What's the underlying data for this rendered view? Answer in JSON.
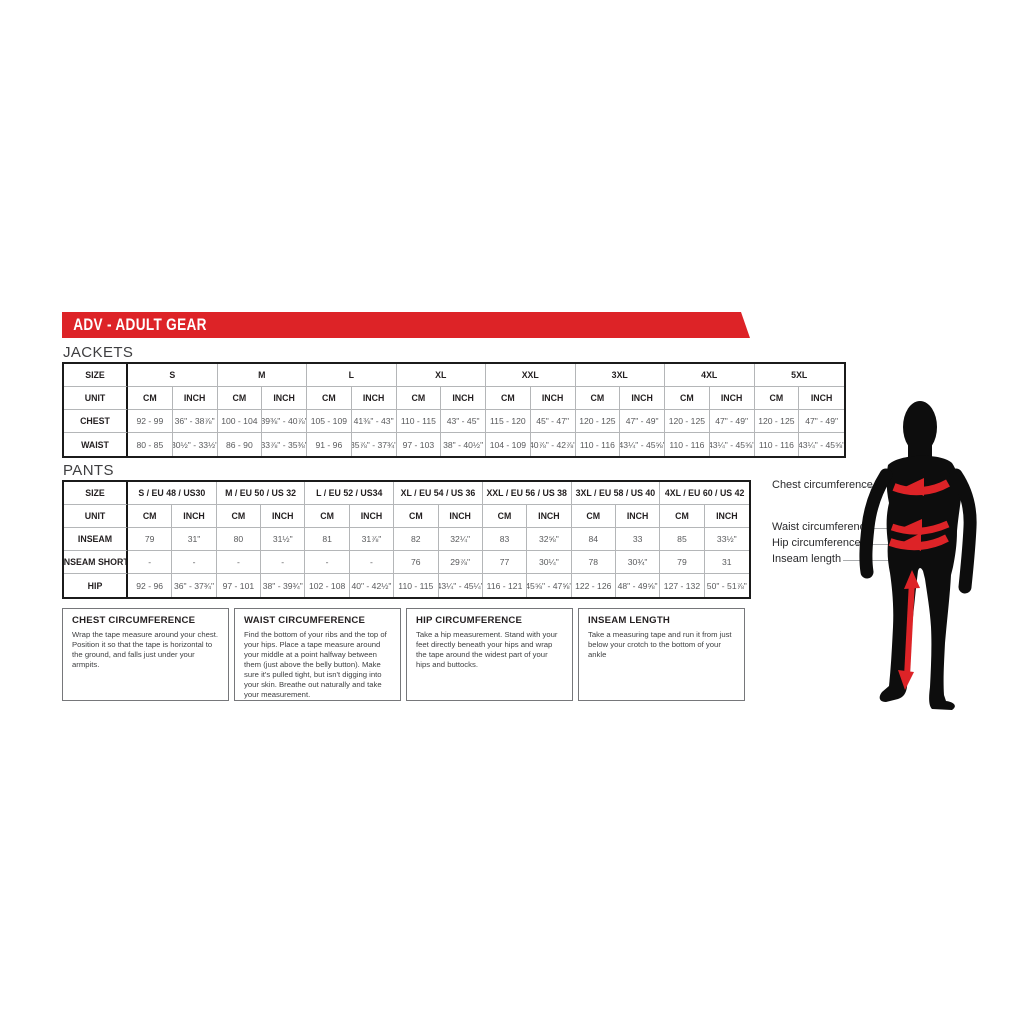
{
  "banner": {
    "title": "ADV - ADULT GEAR"
  },
  "colors": {
    "accent": "#dd2327",
    "body_silhouette": "#0d0d0d",
    "label_text": "#231f20",
    "value_text": "#58595b"
  },
  "jackets": {
    "section_title": "JACKETS",
    "size_label": "SIZE",
    "unit_label": "UNIT",
    "cm_label": "CM",
    "inch_label": "INCH",
    "columns": [
      "S",
      "M",
      "L",
      "XL",
      "XXL",
      "3XL",
      "4XL",
      "5XL"
    ],
    "rows": [
      {
        "label": "CHEST",
        "cm": [
          "92 - 99",
          "100 - 104",
          "105 - 109",
          "110 - 115",
          "115 - 120",
          "120 - 125",
          "120 - 125",
          "120 - 125"
        ],
        "inch": [
          "36\" - 38⅞\"",
          "39⅜\" - 40⅞\"",
          "41⅜\" - 43\"",
          "43\" - 45\"",
          "45\" - 47\"",
          "47\" - 49\"",
          "47\" - 49\"",
          "47\" - 49\""
        ]
      },
      {
        "label": "WAIST",
        "cm": [
          "80 - 85",
          "86 - 90",
          "91 - 96",
          "97 - 103",
          "104 - 109",
          "110 - 116",
          "110 - 116",
          "110 - 116"
        ],
        "inch": [
          "30½\" - 33½\"",
          "33⅞\" - 35⅜\"",
          "35⅞\" - 37¾\"",
          "38\" - 40½\"",
          "40⅞\" - 42⅞\"",
          "43¼\" - 45⅝\"",
          "43¼\" - 45⅝\"",
          "43¼\" - 45⅝\""
        ]
      }
    ]
  },
  "pants": {
    "section_title": "PANTS",
    "size_label": "SIZE",
    "unit_label": "UNIT",
    "cm_label": "CM",
    "inch_label": "INCH",
    "columns": [
      "S / EU 48 / US30",
      "M / EU 50 / US 32",
      "L / EU 52 / US34",
      "XL / EU 54 / US 36",
      "XXL / EU 56 / US 38",
      "3XL / EU 58 / US 40",
      "4XL / EU 60 / US 42"
    ],
    "rows": [
      {
        "label": "INSEAM",
        "cm": [
          "79",
          "80",
          "81",
          "82",
          "83",
          "84",
          "85"
        ],
        "inch": [
          "31\"",
          "31½\"",
          "31⅞\"",
          "32¼\"",
          "32⅝\"",
          "33",
          "33½\""
        ]
      },
      {
        "label": "INSEAM SHORT",
        "cm": [
          "-",
          "-",
          "-",
          "76",
          "77",
          "78",
          "79"
        ],
        "inch": [
          "-",
          "-",
          "-",
          "29⅞\"",
          "30¼\"",
          "30¾\"",
          "31"
        ]
      },
      {
        "label": "HIP",
        "cm": [
          "92 - 96",
          "97 - 101",
          "102 - 108",
          "110 - 115",
          "116 - 121",
          "122 - 126",
          "127 - 132"
        ],
        "inch": [
          "36\" - 37¾\"",
          "38\" - 39¾\"",
          "40\" - 42½\"",
          "43¼\" - 45¼\"",
          "45⅝\" - 47⅝\"",
          "48\" - 49⅝\"",
          "50\" - 51⅞\""
        ]
      }
    ]
  },
  "guides": [
    {
      "title": "CHEST CIRCUMFERENCE",
      "body": "Wrap the tape measure around your chest. Position it so that the tape is horizontal to the ground, and falls just under your armpits."
    },
    {
      "title": "WAIST CIRCUMFERENCE",
      "body": "Find the bottom of your ribs and the top of your hips. Place a tape measure around your middle at a point halfway between them (just above the belly button). Make sure it's pulled tight, but isn't digging into your skin. Breathe out naturally and take your measurement."
    },
    {
      "title": "HIP CIRCUMFERENCE",
      "body": "Take a hip measurement. Stand with your feet directly beneath your hips and wrap the tape around the widest part of your hips and buttocks."
    },
    {
      "title": "INSEAM LENGTH",
      "body": "Take a measuring tape and run it from just below your crotch to the bottom of your ankle"
    }
  ],
  "figure": {
    "labels": {
      "chest": "Chest circumference",
      "waist": "Waist circumference",
      "hip": "Hip circumference",
      "inseam": "Inseam length"
    }
  }
}
